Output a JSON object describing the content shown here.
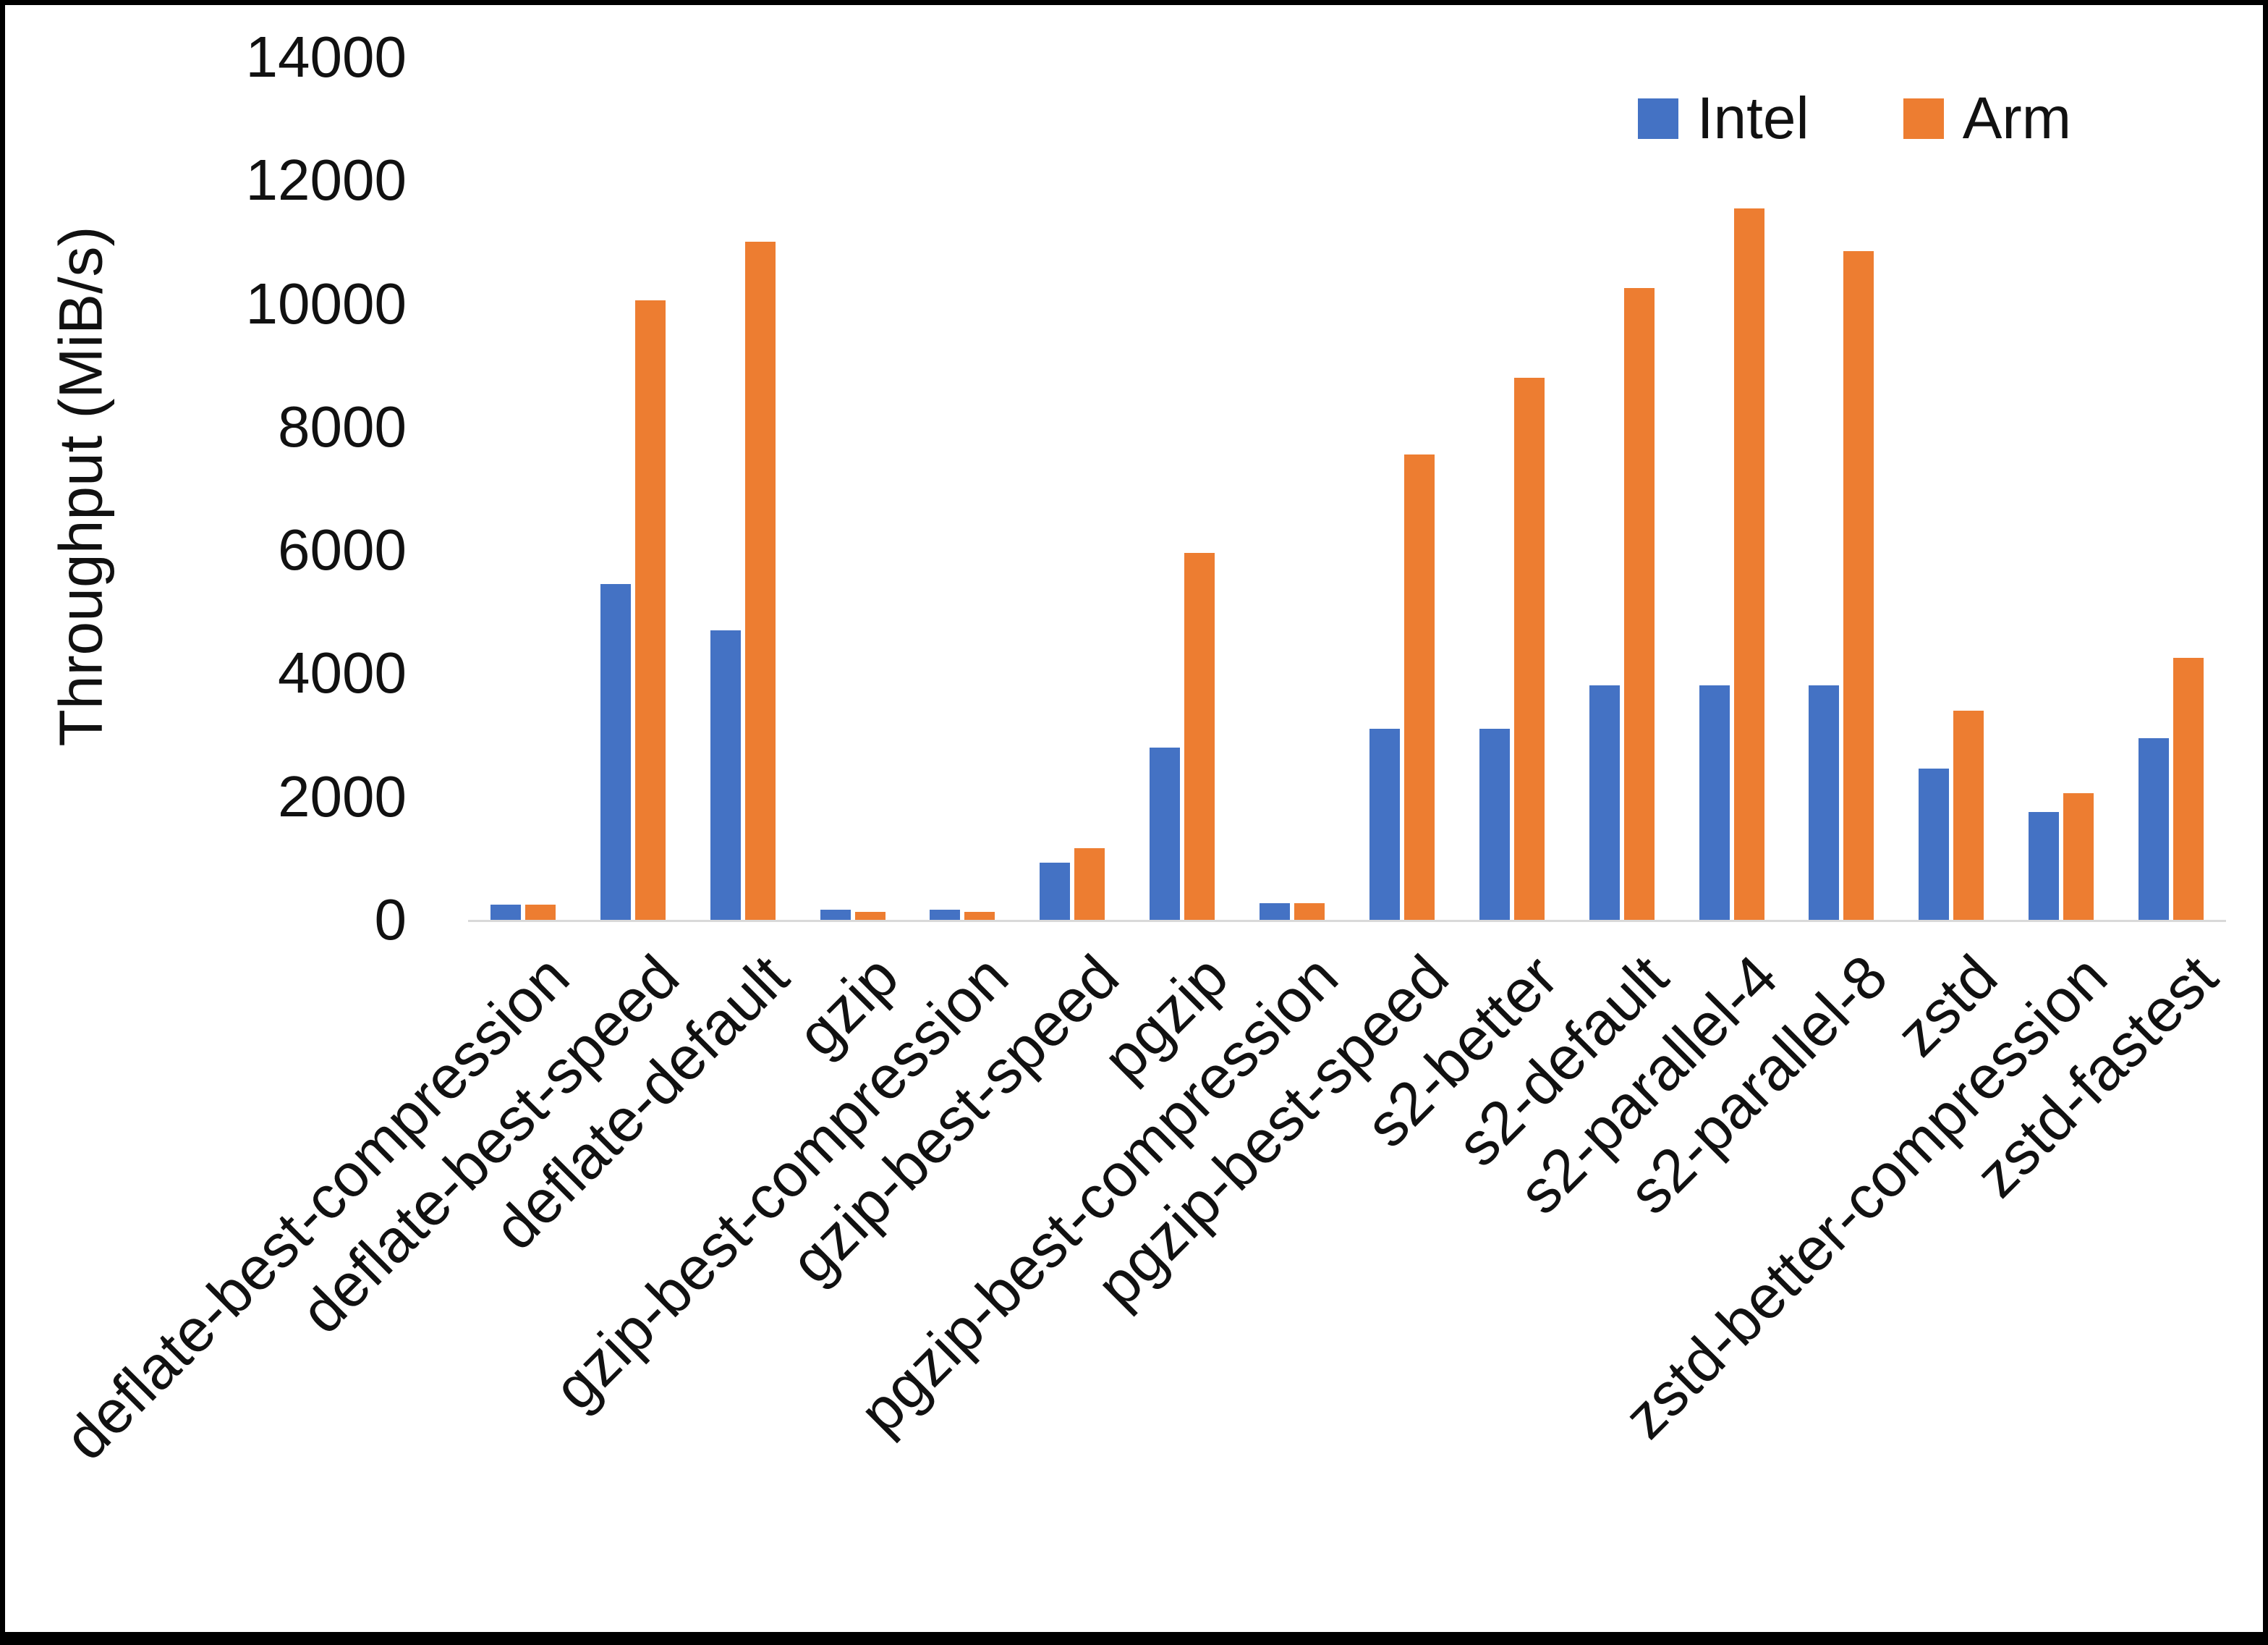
{
  "chart_data": {
    "type": "bar",
    "title": "",
    "xlabel": "",
    "ylabel": "Throughput (MiB/s)",
    "ylim": [
      0,
      14000
    ],
    "yticks": [
      0,
      2000,
      4000,
      6000,
      8000,
      10000,
      12000,
      14000
    ],
    "grid": false,
    "legend_position": "top-right",
    "categories": [
      "deflate-best-compression",
      "deflate-best-speed",
      "deflate-default",
      "gzip",
      "gzip-best-compression",
      "gzip-best-speed",
      "pgzip",
      "pgzip-best-compression",
      "pgzip-best-speed",
      "s2-better",
      "s2-default",
      "s2-parallel-4",
      "s2-parallel-8",
      "zstd",
      "zstd-better-compression",
      "zstd-fastest"
    ],
    "series": [
      {
        "name": "Intel",
        "color": "#4472C4",
        "values": [
          250,
          5450,
          4700,
          160,
          160,
          930,
          2800,
          270,
          3100,
          3100,
          3800,
          3800,
          3800,
          2450,
          1750,
          2950
        ]
      },
      {
        "name": "Arm",
        "color": "#ED7D31",
        "values": [
          250,
          10050,
          11000,
          130,
          130,
          1160,
          5950,
          270,
          7550,
          8800,
          10250,
          11550,
          10850,
          3400,
          2050,
          4250
        ]
      }
    ]
  },
  "colors": {
    "intel": "#4472C4",
    "arm": "#ED7D31",
    "axis_line": "#d9d9d9",
    "text": "#111111",
    "frame": "#000000"
  }
}
